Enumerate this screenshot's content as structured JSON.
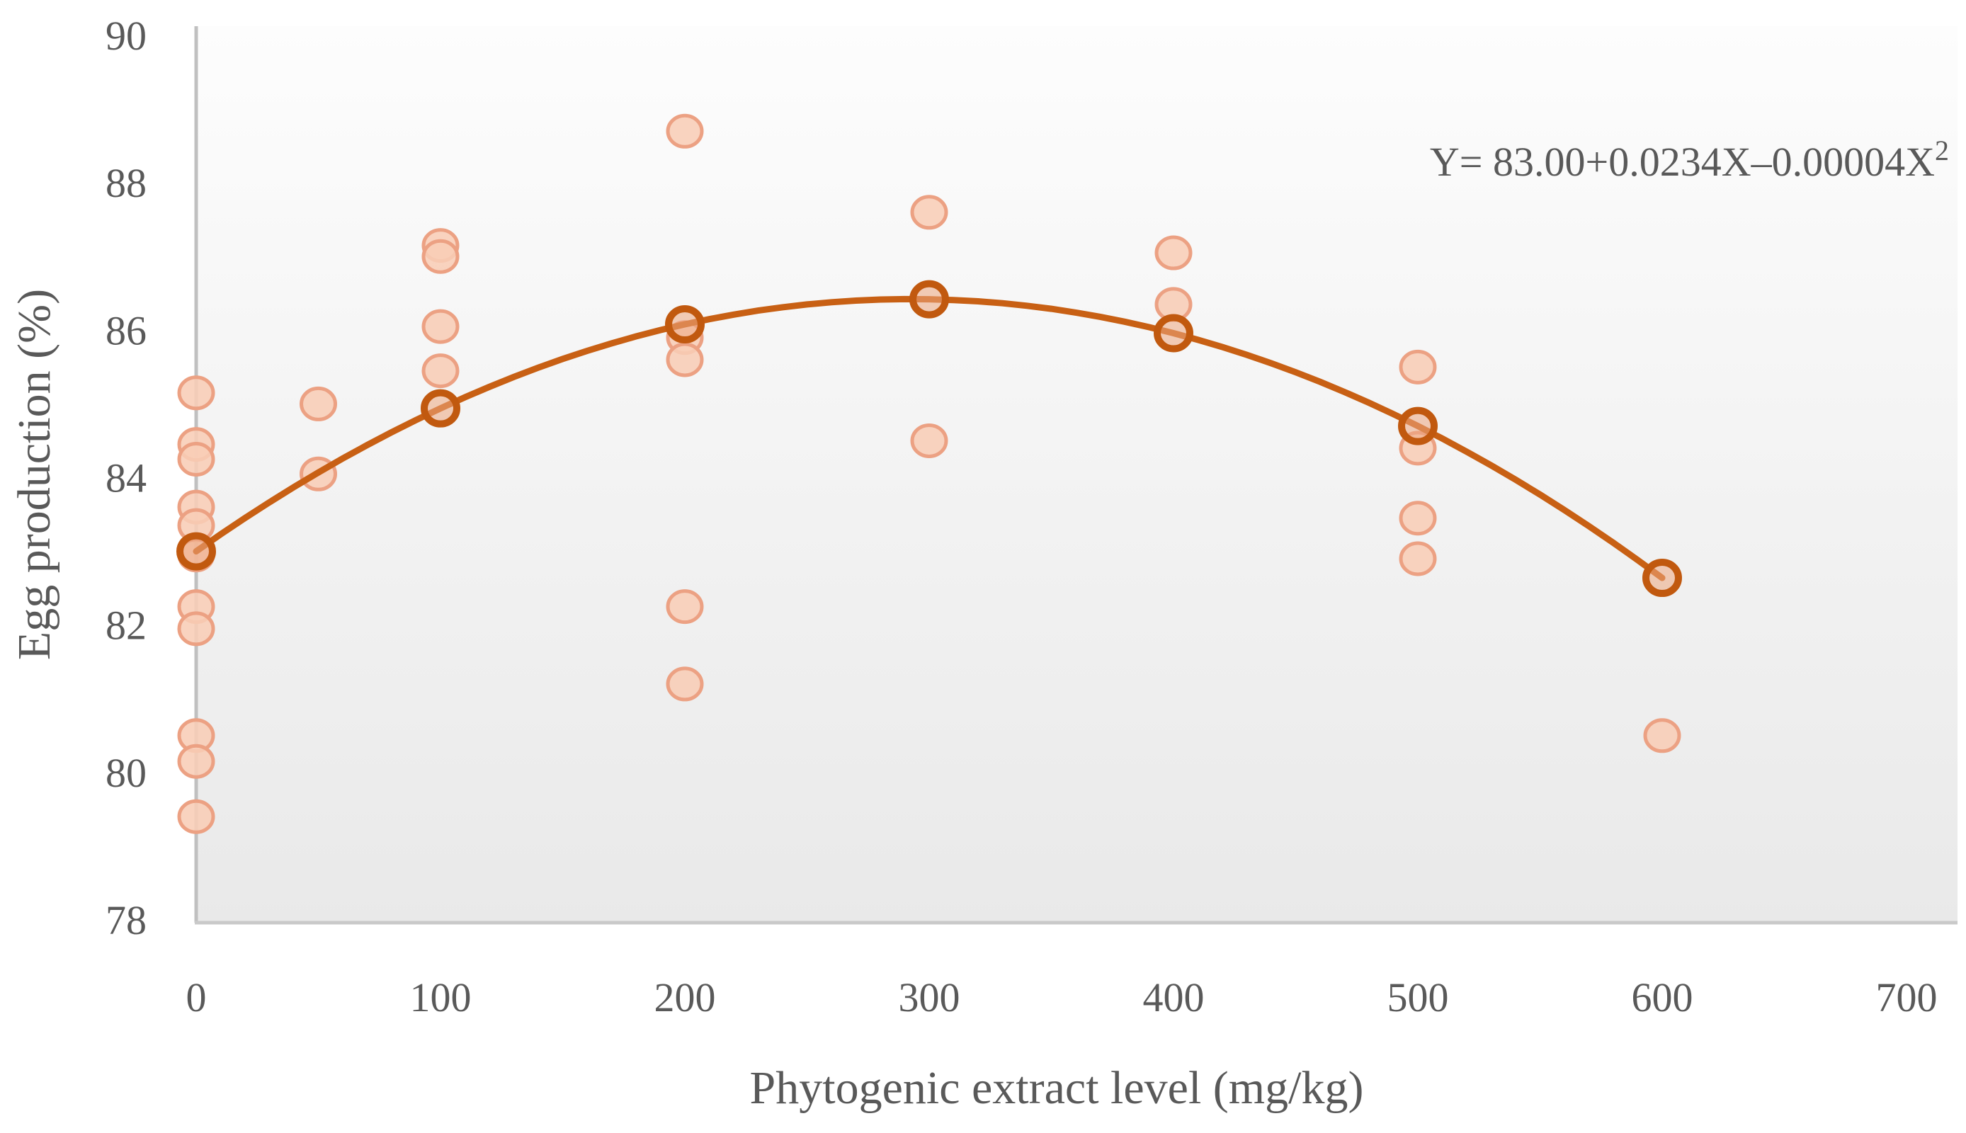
{
  "chart_data": {
    "type": "scatter",
    "title": "",
    "xlabel": "Phytogenic extract level (mg/kg)",
    "ylabel": "Egg production (%)",
    "equation": {
      "body": "Y= 83.00+0.0234X–0.00004X",
      "sup": "2"
    },
    "xlim": [
      0,
      700
    ],
    "ylim": [
      78,
      90
    ],
    "x_ticks": [
      0,
      100,
      200,
      300,
      400,
      500,
      600,
      700
    ],
    "y_ticks": [
      90,
      88,
      86,
      84,
      82,
      80,
      78
    ],
    "grid": false,
    "legend": "none",
    "regression": {
      "intercept": 83.0,
      "linear": 0.0234,
      "quadratic": -4e-05,
      "x_start": 0,
      "x_end": 600
    },
    "series": [
      {
        "name": "replicates",
        "points": [
          {
            "x": 0,
            "values": [
              85.15,
              84.45,
              84.25,
              83.6,
              83.35,
              82.95,
              82.25,
              81.95,
              80.5,
              80.15,
              79.4
            ]
          },
          {
            "x": 50,
            "values": [
              85.0,
              84.05
            ]
          },
          {
            "x": 100,
            "values": [
              87.15,
              87.0,
              86.05,
              85.45
            ]
          },
          {
            "x": 200,
            "values": [
              88.7,
              85.9,
              85.6,
              82.25,
              81.2
            ]
          },
          {
            "x": 300,
            "values": [
              87.6,
              84.5
            ]
          },
          {
            "x": 400,
            "values": [
              87.05,
              86.35
            ]
          },
          {
            "x": 500,
            "values": [
              85.5,
              84.4,
              83.45,
              82.9
            ]
          },
          {
            "x": 600,
            "values": [
              80.5
            ]
          }
        ]
      },
      {
        "name": "fitted-means",
        "points": [
          {
            "x": 0,
            "y": 83.0
          },
          {
            "x": 100,
            "y": 84.94
          },
          {
            "x": 200,
            "y": 86.08
          },
          {
            "x": 300,
            "y": 86.42
          },
          {
            "x": 400,
            "y": 85.96
          },
          {
            "x": 500,
            "y": 84.7
          },
          {
            "x": 600,
            "y": 82.64
          }
        ]
      }
    ],
    "colors": {
      "replicate_fill": "#f8cdb6",
      "replicate_stroke": "#eca183",
      "mean_fill": "#eda57f",
      "mean_stroke": "#c1590f",
      "curve": "#c86014",
      "text": "#595959",
      "axis_line": "#c0c0c0",
      "baseline": "#c9c9c9",
      "plot_bg_top": "#fdfdfd",
      "plot_bg_bottom": "#e9e9e9"
    }
  }
}
